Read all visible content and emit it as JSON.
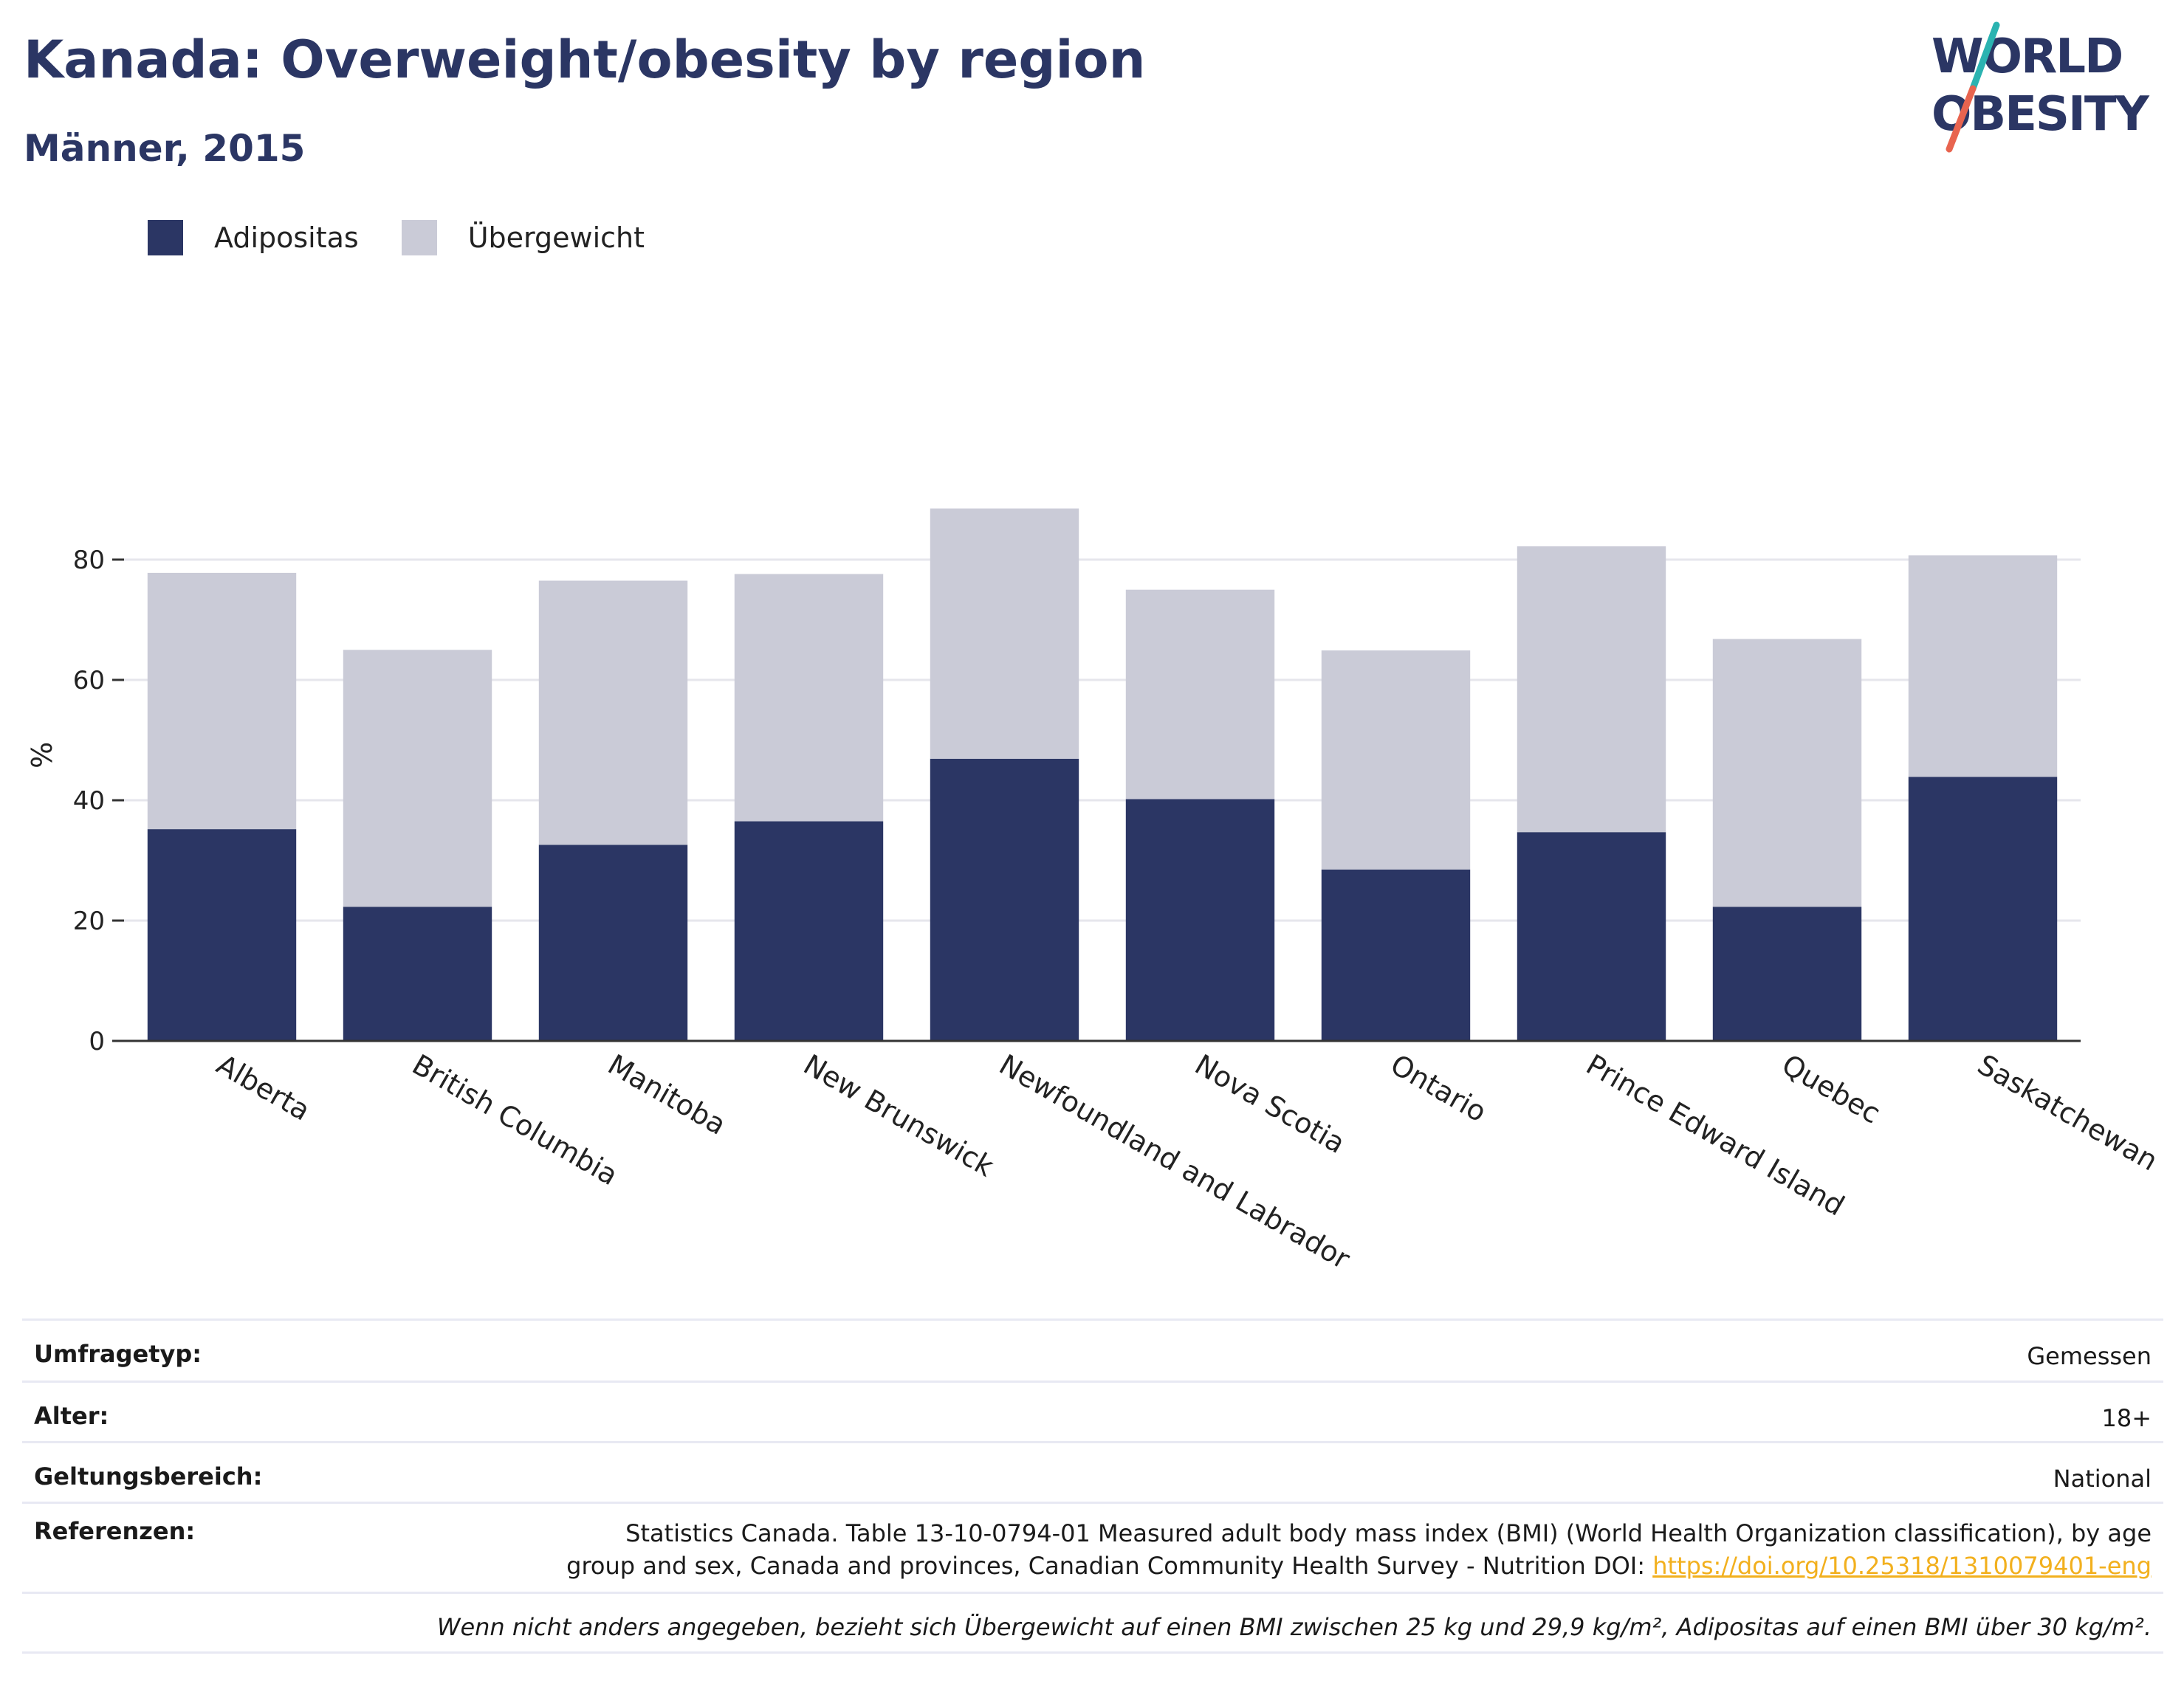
{
  "header": {
    "title": "Kanada: Overweight/obesity by region",
    "subtitle": "Männer, 2015"
  },
  "logo": {
    "line1": "WORLD",
    "line2": "OBESITY",
    "colors": {
      "text": "#2b3664",
      "slash_top": "#2bb3b1",
      "slash_bottom": "#e8644f"
    }
  },
  "legend": {
    "items": [
      {
        "label": "Adipositas",
        "color": "#2b3664"
      },
      {
        "label": "Übergewicht",
        "color": "#cacbd7"
      }
    ]
  },
  "chart_data": {
    "type": "bar",
    "stacked": true,
    "title": "",
    "xlabel": "",
    "ylabel": "%",
    "ylim": [
      0,
      100
    ],
    "yticks": [
      0,
      20,
      40,
      60,
      80
    ],
    "grid": true,
    "legend_position": "top-left",
    "categories": [
      "Alberta",
      "British Columbia",
      "Manitoba",
      "New Brunswick",
      "Newfoundland and Labrador",
      "Nova Scotia",
      "Ontario",
      "Prince Edward Island",
      "Quebec",
      "Saskatchewan"
    ],
    "series": [
      {
        "name": "Adipositas",
        "color": "#2b3664",
        "values": [
          35.2,
          22.3,
          32.6,
          36.5,
          46.9,
          40.2,
          28.5,
          34.7,
          22.3,
          43.9
        ]
      },
      {
        "name": "Übergewicht",
        "color": "#cacbd7",
        "values": [
          42.6,
          42.7,
          43.9,
          41.1,
          41.6,
          34.8,
          36.4,
          47.5,
          44.5,
          36.8
        ]
      }
    ]
  },
  "info": {
    "survey_type_label": "Umfragetyp:",
    "survey_type_value": "Gemessen",
    "age_label": "Alter:",
    "age_value": "18+",
    "scope_label": "Geltungsbereich:",
    "scope_value": "National",
    "references_label": "Referenzen:",
    "references_text_line1": "Statistics Canada. Table 13-10-0794-01 Measured adult body mass index (BMI) (World Health Organization classification), by age",
    "references_text_line2": "group and sex, Canada and provinces, Canadian Community Health Survey - Nutrition DOI: ",
    "references_link": "https://doi.org/10.25318/1310079401-eng",
    "footnote": "Wenn nicht anders angegeben, bezieht sich Übergewicht auf einen BMI zwischen 25 kg und 29,9 kg/m², Adipositas auf einen BMI über 30 kg/m²."
  }
}
